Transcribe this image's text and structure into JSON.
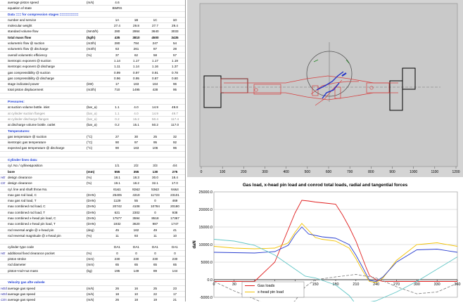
{
  "sheet": {
    "rows": [
      {
        "k": "",
        "label": "average piston speed",
        "unit": "(m/s)",
        "v": [
          "4.6",
          "",
          "",
          ""
        ]
      },
      {
        "k": "",
        "label": "equation of state",
        "unit": "",
        "v": [
          "BWRS",
          "",
          "",
          ""
        ]
      },
      {
        "k": "",
        "label": "Data === for compression stages ==========",
        "unit": "",
        "v": [
          "",
          "",
          "",
          ""
        ],
        "cls": "hdr"
      },
      {
        "k": "",
        "label": "number and service",
        "unit": "",
        "v": [
          "1A",
          "1B",
          "1C",
          "1D"
        ]
      },
      {
        "k": "",
        "label": "molecular weight",
        "unit": "",
        "v": [
          "27.4",
          "29.8",
          "27.7",
          "29.4"
        ]
      },
      {
        "k": "",
        "label": "standard volume flow",
        "unit": "(Nm3/h)",
        "v": [
          "280",
          "2864",
          "3640",
          "3033"
        ]
      },
      {
        "k": "",
        "label": "total mass flow",
        "unit": "(kg/h)",
        "v": [
          "435",
          "3810",
          "4500",
          "3435"
        ],
        "cls": "bold"
      },
      {
        "k": "",
        "label": "volumetric flow @ suction",
        "unit": "(m3/h)",
        "v": [
          "280",
          "784",
          "247",
          "54"
        ]
      },
      {
        "k": "",
        "label": "volumetric flow @ discharge",
        "unit": "(m3/h)",
        "v": [
          "63",
          "261",
          "87",
          "28"
        ]
      },
      {
        "k": "",
        "label": "overall volumetric efficiency",
        "unit": "(%)",
        "v": [
          "37",
          "62",
          "58",
          "57"
        ]
      },
      {
        "k": "",
        "label": "isentropic exponent @ suction",
        "unit": "",
        "v": [
          "1.14",
          "1.17",
          "1.17",
          "1.19"
        ]
      },
      {
        "k": "",
        "label": "isentropic exponent @ discharge",
        "unit": "",
        "v": [
          "1.11",
          "1.14",
          "1.16",
          "1.37"
        ]
      },
      {
        "k": "",
        "label": "gas compressibility @ suction",
        "unit": "",
        "v": [
          "0.99",
          "0.97",
          "0.91",
          "0.78"
        ]
      },
      {
        "k": "",
        "label": "gas compressibility @ discharge",
        "unit": "",
        "v": [
          "0.96",
          "0.95",
          "0.87",
          "0.80"
        ]
      },
      {
        "k": "",
        "label": "stage indicated power",
        "unit": "(kW)",
        "v": [
          "17",
          "163",
          "164",
          "96"
        ]
      },
      {
        "k": "",
        "label": "total piston displacement",
        "unit": "(m3/h)",
        "v": [
          "710",
          "1495",
          "428",
          "95"
        ]
      },
      {
        "k": "",
        "label": "",
        "unit": "",
        "v": [
          "",
          "",
          "",
          ""
        ]
      },
      {
        "k": "",
        "label": "Pressures:",
        "unit": "",
        "v": [
          "",
          "",
          "",
          ""
        ],
        "cls": "hdr"
      },
      {
        "k": "",
        "label": "at suction volume bottle. inlet",
        "unit": "(bar_a)",
        "v": [
          "1.1",
          "4.0",
          "14.9",
          "49.8"
        ]
      },
      {
        "k": "",
        "label": "at cylinder suction flanges",
        "unit": "(bar_a)",
        "v": [
          "1.1",
          "4.0",
          "14.9",
          "49.7"
        ],
        "cls": "grey"
      },
      {
        "k": "",
        "label": "at cylinder discharge flanges",
        "unit": "(bar_a)",
        "v": [
          "0.2",
          "15.2",
          "50.4",
          "117.4"
        ],
        "cls": "grey"
      },
      {
        "k": "",
        "label": "at discharge volume bottle. outlet",
        "unit": "(bar_a)",
        "v": [
          "0.2",
          "15.1",
          "50.2",
          "117.0"
        ]
      },
      {
        "k": "",
        "label": "Temperatures:",
        "unit": "",
        "v": [
          "",
          "",
          "",
          ""
        ],
        "cls": "hdr"
      },
      {
        "k": "",
        "label": "gas temperature @ suction",
        "unit": "(°C)",
        "v": [
          "27",
          "30",
          "25",
          "32"
        ]
      },
      {
        "k": "",
        "label": "isentropic gas temperature",
        "unit": "(°C)",
        "v": [
          "90",
          "97",
          "95",
          "92"
        ]
      },
      {
        "k": "",
        "label": "expected gas temperature @ discharge",
        "unit": "(°C)",
        "v": [
          "90",
          "163",
          "106",
          "96"
        ]
      },
      {
        "k": "",
        "label": "",
        "unit": "",
        "v": [
          "",
          "",
          "",
          ""
        ]
      },
      {
        "k": "",
        "label": "Cylinder lines data:",
        "unit": "",
        "v": [
          "",
          "",
          "",
          ""
        ],
        "cls": "hdr"
      },
      {
        "k": "",
        "label": "cyl. No / cylline&position",
        "unit": "",
        "v": [
          "1/1",
          "2/2",
          "3/3",
          "4/4"
        ]
      },
      {
        "k": "",
        "label": "bore",
        "unit": "(mm)",
        "v": [
          "555",
          "355",
          "130",
          "275"
        ],
        "cls": "bold"
      },
      {
        "k": "HE",
        "label": "design clearance",
        "unit": "(%)",
        "v": [
          "18.1",
          "18.3",
          "30.0",
          "18.4"
        ]
      },
      {
        "k": "CE",
        "label": "design clearance",
        "unit": "(%)",
        "v": [
          "19.1",
          "18.2",
          "32.1",
          "17.0"
        ]
      },
      {
        "k": "",
        "label": "cyl. line and shaft throw No.",
        "unit": "",
        "v": [
          "61&1",
          "82&2",
          "53&3",
          "64&4"
        ]
      },
      {
        "k": "",
        "label": "max gas rod load, C",
        "unit": "(DAN)",
        "v": [
          "25405",
          "4319",
          "11723",
          "23101"
        ]
      },
      {
        "k": "",
        "label": "max gas rod load, T",
        "unit": "(DAN)",
        "v": [
          "1129",
          "55",
          "0",
          "469"
        ]
      },
      {
        "k": "",
        "label": "max combined rod load, C",
        "unit": "(DAN)",
        "v": [
          "20742",
          "4108",
          "10784",
          "20180"
        ]
      },
      {
        "k": "",
        "label": "max combined rod load, T",
        "unit": "(DAN)",
        "v": [
          "621",
          "2302",
          "0",
          "938"
        ]
      },
      {
        "k": "",
        "label": "max combined x-head pin load, C",
        "unit": "(DAN)",
        "v": [
          "17577",
          "3594",
          "8518",
          "17367"
        ]
      },
      {
        "k": "",
        "label": "max combined x-head pin load, T",
        "unit": "(DAN)",
        "v": [
          "1932",
          "3620",
          "987",
          "1747"
        ]
      },
      {
        "k": "",
        "label": "rod reversal angle @ x-head pin",
        "unit": "(deg)",
        "v": [
          "45",
          "162",
          "49",
          "41"
        ]
      },
      {
        "k": "",
        "label": "rod reversal magnitude @ x-head pin",
        "unit": "(%)",
        "v": [
          "11",
          "93",
          "11",
          "10"
        ]
      },
      {
        "k": "",
        "label": "",
        "unit": "",
        "v": [
          "",
          "",
          "",
          ""
        ]
      },
      {
        "k": "",
        "label": "cylinder type code",
        "unit": "",
        "v": [
          "DA1",
          "DA1",
          "DA1",
          "DA1"
        ]
      },
      {
        "k": "HE",
        "label": "additional fixed clearance pocket",
        "unit": "(%)",
        "v": [
          "0",
          "0",
          "0",
          "0"
        ]
      },
      {
        "k": "",
        "label": "piston stroke",
        "unit": "(mm)",
        "v": [
          "230",
          "230",
          "230",
          "230"
        ]
      },
      {
        "k": "",
        "label": "rod diameter",
        "unit": "(mm)",
        "v": [
          "65",
          "65",
          "65",
          "65"
        ]
      },
      {
        "k": "",
        "label": "piston+rod+nut mass",
        "unit": "(kg)",
        "v": [
          "195",
          "149",
          "89",
          "144"
        ]
      },
      {
        "k": "",
        "label": "",
        "unit": "",
        "v": [
          "",
          "",
          "",
          ""
        ]
      },
      {
        "k": "",
        "label": "Velocity gas afte valvele",
        "unit": "",
        "v": [
          "",
          "",
          "",
          ""
        ],
        "cls": "hdr"
      },
      {
        "k": "HEd",
        "label": "average gas speed",
        "unit": "(m/s)",
        "v": [
          "26",
          "16",
          "25",
          "23"
        ]
      },
      {
        "k": "HEd",
        "label": "average gas speed",
        "unit": "(m/s)",
        "v": [
          "18",
          "10",
          "22",
          "17"
        ]
      },
      {
        "k": "CEs",
        "label": "average gas speed",
        "unit": "(m/s)",
        "v": [
          "26",
          "18",
          "19",
          "21"
        ]
      },
      {
        "k": "CEd",
        "label": "average gas speed",
        "unit": "(m/s)",
        "v": [
          "",
          "",
          "",
          ""
        ]
      }
    ]
  },
  "mechanism": {
    "x_ticks": [
      "0",
      "100",
      "200",
      "300",
      "400",
      "500",
      "600",
      "700",
      "800",
      "900",
      "1000",
      "1100",
      "1200"
    ]
  },
  "chart_data": {
    "type": "line",
    "title": "Gas load, x-head pin load and conrod total loads, radial and tangential forces",
    "xlabel": "",
    "ylabel": "daN",
    "xlim": [
      0,
      360
    ],
    "ylim": [
      -5000,
      25000
    ],
    "x_ticks": [
      "0",
      "30",
      "60",
      "90",
      "120",
      "150",
      "180",
      "210",
      "240",
      "270",
      "300",
      "330",
      "360"
    ],
    "y_ticks": [
      "-5000.0",
      "0.0",
      "5000.0",
      "10000.0",
      "15000.0",
      "20000.0",
      "25000.0"
    ],
    "legend_placement": "bottom-center",
    "series": [
      {
        "name": "Gas loads",
        "color": "#e01e1e",
        "x": [
          0,
          30,
          60,
          90,
          120,
          130,
          140,
          150,
          160,
          170,
          180,
          190,
          200,
          210,
          220,
          225,
          230,
          240,
          250,
          270,
          300,
          330,
          360
        ],
        "y": [
          -500,
          -500,
          -500,
          5000,
          19000,
          22600,
          22400,
          22100,
          21900,
          21700,
          21500,
          18500,
          15000,
          11000,
          6000,
          3500,
          1200,
          0,
          -500,
          -500,
          -500,
          -500,
          -500
        ]
      },
      {
        "name": "x-head pin load",
        "color": "#f2c200",
        "x": [
          0,
          30,
          60,
          90,
          110,
          120,
          130,
          140,
          150,
          160,
          180,
          200,
          210,
          220,
          230,
          240,
          250,
          270,
          300,
          330,
          360
        ],
        "y": [
          9500,
          9000,
          8800,
          9000,
          10500,
          13500,
          16000,
          14000,
          12000,
          11500,
          11000,
          9000,
          6000,
          2500,
          -500,
          -800,
          500,
          5500,
          10000,
          10500,
          9500
        ]
      },
      {
        "name": "",
        "color": "#2a3fd0",
        "x": [
          0,
          30,
          60,
          90,
          110,
          120,
          130,
          140,
          160,
          180,
          200,
          210,
          220,
          230,
          240,
          250,
          270,
          300,
          330,
          360
        ],
        "y": [
          7800,
          7700,
          7600,
          8000,
          9800,
          12800,
          15000,
          13000,
          12200,
          11800,
          10000,
          7000,
          3500,
          -200,
          -500,
          800,
          5000,
          8500,
          8700,
          7800
        ]
      },
      {
        "name": "",
        "color": "#888888",
        "dash": "4,2",
        "x": [
          0,
          30,
          60,
          90,
          100,
          120,
          135,
          150,
          180,
          210,
          240,
          270,
          300,
          330,
          360
        ],
        "y": [
          -500,
          -3200,
          -5500,
          -8000,
          -9000,
          -6000,
          -2000,
          0,
          800,
          1500,
          500,
          -2000,
          -4000,
          -3500,
          -1000
        ]
      },
      {
        "name": "",
        "color": "#5fc5c5",
        "x": [
          0,
          30,
          60,
          90,
          120,
          135,
          150,
          180,
          200,
          210,
          240,
          270,
          300,
          330,
          360
        ],
        "y": [
          11500,
          11000,
          9800,
          7000,
          3000,
          1000,
          500,
          -1500,
          -4500,
          -7000,
          -6000,
          -3500,
          -500,
          3000,
          6500
        ]
      }
    ]
  }
}
